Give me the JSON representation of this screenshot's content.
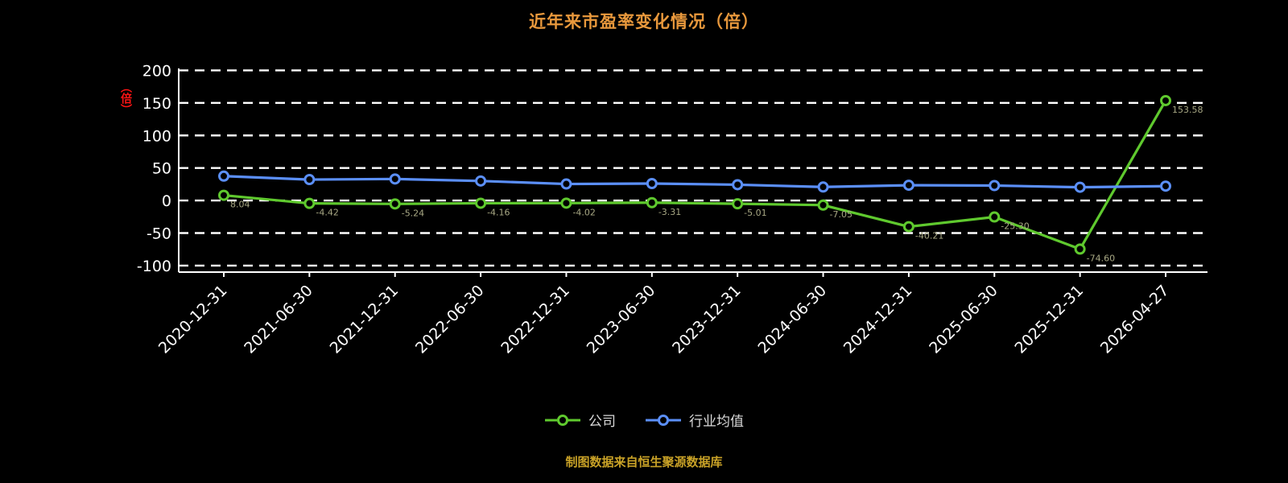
{
  "caption": "制图数据来自恒生聚源数据库",
  "chart_data": {
    "type": "line",
    "title": "近年来市盈率变化情况（倍）",
    "ylabel": "（倍）",
    "xlabel": "",
    "categories": [
      "2020-12-31",
      "2021-06-30",
      "2021-12-31",
      "2022-06-30",
      "2022-12-31",
      "2023-06-30",
      "2023-12-31",
      "2024-06-30",
      "2024-12-31",
      "2025-06-30",
      "2025-12-31",
      "2026-04-27"
    ],
    "yticks": [
      200,
      150,
      100,
      50,
      0,
      -50,
      -100
    ],
    "ylim": [
      -110,
      203
    ],
    "grid": "dashed-horizontal",
    "legend_position": "bottom",
    "background": "#000000",
    "axis_color": "#ffffff",
    "series": [
      {
        "name": "公司",
        "color": "#5fc92e",
        "show_labels": true,
        "values": [
          8.04,
          -4.42,
          -5.24,
          -4.16,
          -4.02,
          -3.31,
          -5.01,
          -7.05,
          -40.21,
          -25.3,
          -74.6,
          153.58
        ]
      },
      {
        "name": "行业均值",
        "color": "#5b8ff9",
        "show_labels": false,
        "values": [
          37.5,
          32.2,
          33.1,
          30.0,
          25.4,
          26.1,
          24.3,
          20.8,
          23.5,
          23.0,
          20.4,
          22.1
        ]
      }
    ]
  }
}
